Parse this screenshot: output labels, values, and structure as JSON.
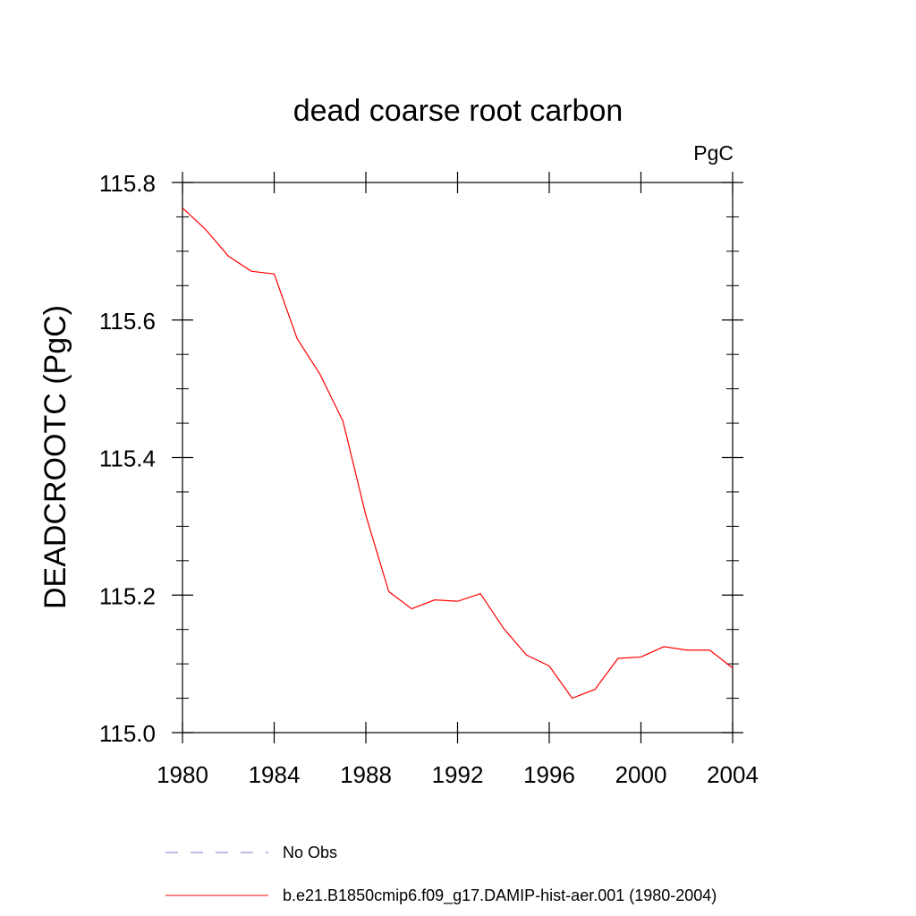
{
  "chart_data": {
    "type": "line",
    "title": "dead coarse root carbon",
    "units": "PgC",
    "xlabel": "",
    "ylabel": "DEADCROOTC  (PgC)",
    "xlim": [
      1980,
      2004
    ],
    "ylim": [
      115.0,
      115.8
    ],
    "x_ticks": [
      1980,
      1984,
      1988,
      1992,
      1996,
      2000,
      2004
    ],
    "x_tick_labels": [
      "1980",
      "1984",
      "1988",
      "1992",
      "1996",
      "2000",
      "2004"
    ],
    "y_ticks": [
      115.0,
      115.2,
      115.4,
      115.6,
      115.8
    ],
    "y_tick_labels": [
      "115.0",
      "115.2",
      "115.4",
      "115.6",
      "115.8"
    ],
    "grid": false,
    "legend_position": "bottom",
    "series": [
      {
        "name": "No Obs",
        "color": "#7b74c8",
        "style": "dashed",
        "x": [],
        "y": []
      },
      {
        "name": "b.e21.B1850cmip6.f09_g17.DAMIP-hist-aer.001 (1980-2004)",
        "color": "#ff0000",
        "style": "solid",
        "x": [
          1980,
          1981,
          1982,
          1983,
          1984,
          1985,
          1986,
          1987,
          1988,
          1989,
          1990,
          1991,
          1992,
          1993,
          1994,
          1995,
          1996,
          1997,
          1998,
          1999,
          2000,
          2001,
          2002,
          2003,
          2004
        ],
        "y": [
          115.763,
          115.732,
          115.693,
          115.671,
          115.667,
          115.573,
          115.521,
          115.453,
          115.316,
          115.205,
          115.18,
          115.193,
          115.191,
          115.202,
          115.152,
          115.113,
          115.097,
          115.05,
          115.063,
          115.108,
          115.11,
          115.125,
          115.12,
          115.12,
          115.094
        ]
      }
    ]
  }
}
